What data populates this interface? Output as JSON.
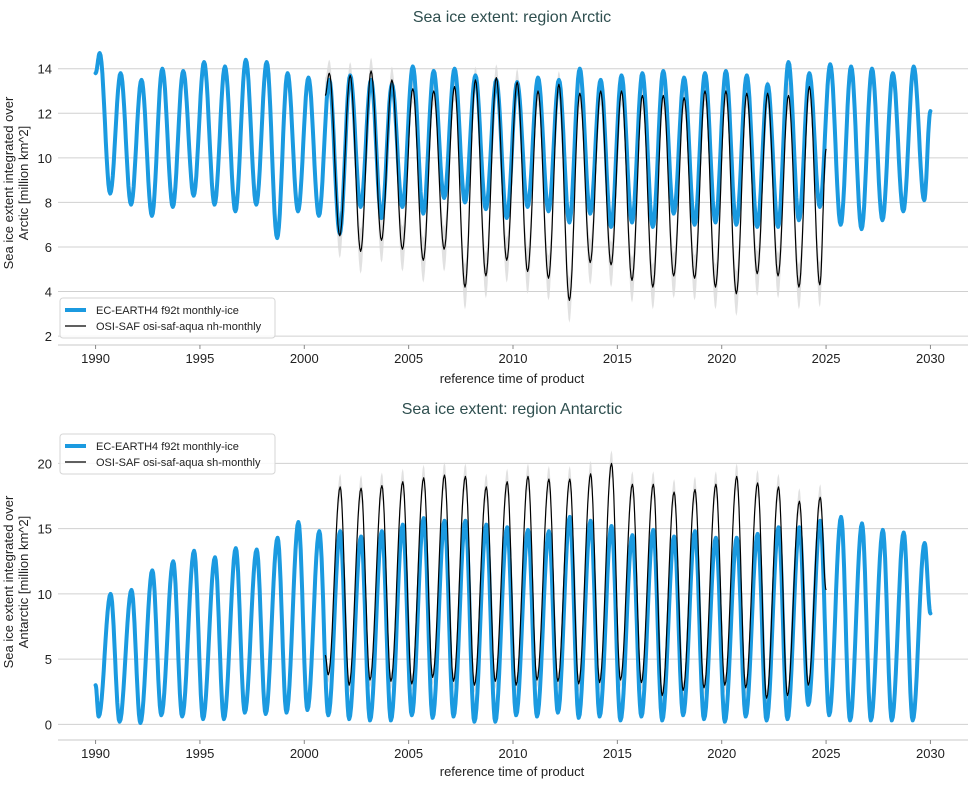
{
  "chart_data": [
    {
      "type": "line",
      "title": "Sea ice extent: region Arctic",
      "xlabel": "reference time of product",
      "ylabel": [
        "Sea ice extent integrated over",
        "Arctic [million km^2]"
      ],
      "xlim": [
        1988.2,
        2031.8
      ],
      "ylim": [
        1.6,
        15.2
      ],
      "xticks": [
        1990,
        1995,
        2000,
        2005,
        2010,
        2015,
        2020,
        2025,
        2030
      ],
      "yticks": [
        2,
        4,
        6,
        8,
        10,
        12,
        14
      ],
      "grid": "horizontal",
      "legend_position": "bottom-left",
      "seasonal_max_month_fraction": 0.2,
      "seasonal_min_month_fraction": 0.7,
      "series": [
        {
          "name": "EC-EARTH4 f92t monthly-ice",
          "color": "#1b9ae0",
          "start_year": 1990,
          "start_value": 13.8,
          "end_year": 2030,
          "end_value": 12.1,
          "annual_max": [
            14.7,
            13.8,
            13.5,
            14.0,
            13.9,
            14.3,
            14.1,
            14.4,
            14.3,
            13.8,
            13.6,
            13.5,
            13.7,
            13.5,
            13.3,
            14.1,
            13.9,
            14.0,
            13.7,
            13.5,
            13.4,
            13.6,
            13.5,
            14.0,
            13.5,
            13.7,
            13.8,
            13.9,
            13.6,
            13.8,
            13.9,
            13.7,
            13.3,
            14.3,
            13.8,
            14.2,
            14.1,
            14.0,
            13.8,
            14.1
          ],
          "annual_min": [
            8.4,
            7.9,
            7.4,
            7.8,
            8.3,
            7.9,
            7.6,
            7.9,
            6.4,
            7.6,
            7.4,
            6.6,
            7.8,
            7.3,
            7.8,
            7.5,
            8.2,
            8.0,
            7.7,
            7.3,
            7.8,
            7.6,
            7.1,
            7.5,
            6.9,
            7.1,
            6.9,
            7.5,
            7.0,
            7.1,
            7.0,
            6.9,
            6.9,
            7.2,
            7.8,
            7.0,
            6.8,
            7.2,
            7.6,
            8.1
          ]
        },
        {
          "name": "OSI-SAF osi-saf-aqua nh-monthly",
          "color": "#000000",
          "band_color": "#d9d9d9",
          "uncertainty_at_max": 0.6,
          "uncertainty_at_min": 1.0,
          "start_year": 2001,
          "start_value": 12.8,
          "end_year": 2025,
          "end_value": 10.4,
          "annual_max": [
            13.8,
            13.7,
            13.9,
            13.5,
            13.1,
            13.0,
            13.2,
            13.5,
            13.6,
            13.4,
            13.0,
            13.3,
            12.9,
            13.0,
            13.0,
            12.8,
            12.8,
            12.7,
            13.0,
            13.0,
            12.9,
            12.9,
            12.8,
            13.2
          ],
          "annual_min": [
            6.5,
            5.8,
            6.3,
            5.9,
            5.4,
            5.9,
            4.2,
            4.7,
            5.4,
            4.9,
            4.6,
            3.6,
            5.3,
            5.2,
            4.5,
            4.2,
            4.7,
            4.6,
            4.2,
            3.9,
            4.8,
            4.7,
            4.2,
            4.3
          ]
        }
      ]
    },
    {
      "type": "line",
      "title": "Sea ice extent: region Antarctic",
      "xlabel": "reference time of product",
      "ylabel": [
        "Sea ice extent integrated over",
        "Antarctic [million km^2]"
      ],
      "xlim": [
        1988.2,
        2031.8
      ],
      "ylim": [
        -1.2,
        22.1
      ],
      "xticks": [
        1990,
        1995,
        2000,
        2005,
        2010,
        2015,
        2020,
        2025,
        2030
      ],
      "yticks": [
        0,
        5,
        10,
        15,
        20
      ],
      "grid": "horizontal",
      "legend_position": "top-left",
      "seasonal_max_month_fraction": 0.72,
      "seasonal_min_month_fraction": 0.15,
      "series": [
        {
          "name": "EC-EARTH4 f92t monthly-ice",
          "color": "#1b9ae0",
          "start_year": 1990,
          "start_value": 3.0,
          "end_year": 2030,
          "end_value": 8.5,
          "annual_max": [
            10.0,
            10.3,
            11.8,
            12.5,
            13.3,
            12.8,
            13.5,
            13.4,
            14.3,
            15.5,
            14.8,
            14.8,
            14.4,
            14.8,
            15.3,
            15.8,
            15.6,
            15.6,
            15.3,
            15.1,
            14.9,
            14.8,
            15.9,
            15.6,
            15.2,
            14.5,
            14.9,
            14.4,
            14.8,
            14.3,
            14.3,
            14.6,
            15.1,
            15.1,
            15.6,
            15.9,
            15.4,
            14.9,
            14.7,
            13.9
          ],
          "annual_min": [
            0.6,
            0.2,
            0.1,
            0.7,
            0.6,
            0.4,
            0.4,
            0.9,
            0.8,
            0.9,
            1.1,
            0.7,
            0.4,
            0.3,
            0.3,
            0.7,
            0.5,
            0.6,
            0.2,
            0.2,
            0.7,
            0.6,
            0.9,
            0.5,
            0.6,
            0.3,
            0.6,
            0.3,
            0.7,
            0.4,
            0.2,
            0.6,
            0.3,
            0.4,
            1.5,
            0.7,
            0.3,
            0.3,
            0.3,
            0.3
          ]
        },
        {
          "name": "OSI-SAF osi-saf-aqua sh-monthly",
          "color": "#000000",
          "band_color": "#d9d9d9",
          "uncertainty_at_max": 1.0,
          "uncertainty_at_min": 0.6,
          "start_year": 2001,
          "start_value": 5.3,
          "end_year": 2025,
          "end_value": 10.3,
          "annual_max": [
            18.2,
            18.1,
            18.3,
            18.6,
            18.9,
            19.1,
            19.0,
            18.2,
            18.6,
            19.0,
            18.8,
            18.8,
            19.2,
            20.0,
            18.4,
            18.4,
            17.8,
            18.0,
            18.4,
            19.0,
            18.5,
            18.2,
            17.1,
            17.4
          ],
          "annual_min": [
            3.8,
            3.0,
            3.4,
            3.3,
            3.1,
            3.6,
            3.3,
            3.0,
            3.3,
            3.0,
            3.4,
            3.3,
            3.1,
            3.2,
            3.4,
            3.2,
            2.2,
            2.6,
            2.8,
            3.0,
            2.8,
            2.0,
            2.2,
            3.0
          ]
        }
      ]
    }
  ]
}
